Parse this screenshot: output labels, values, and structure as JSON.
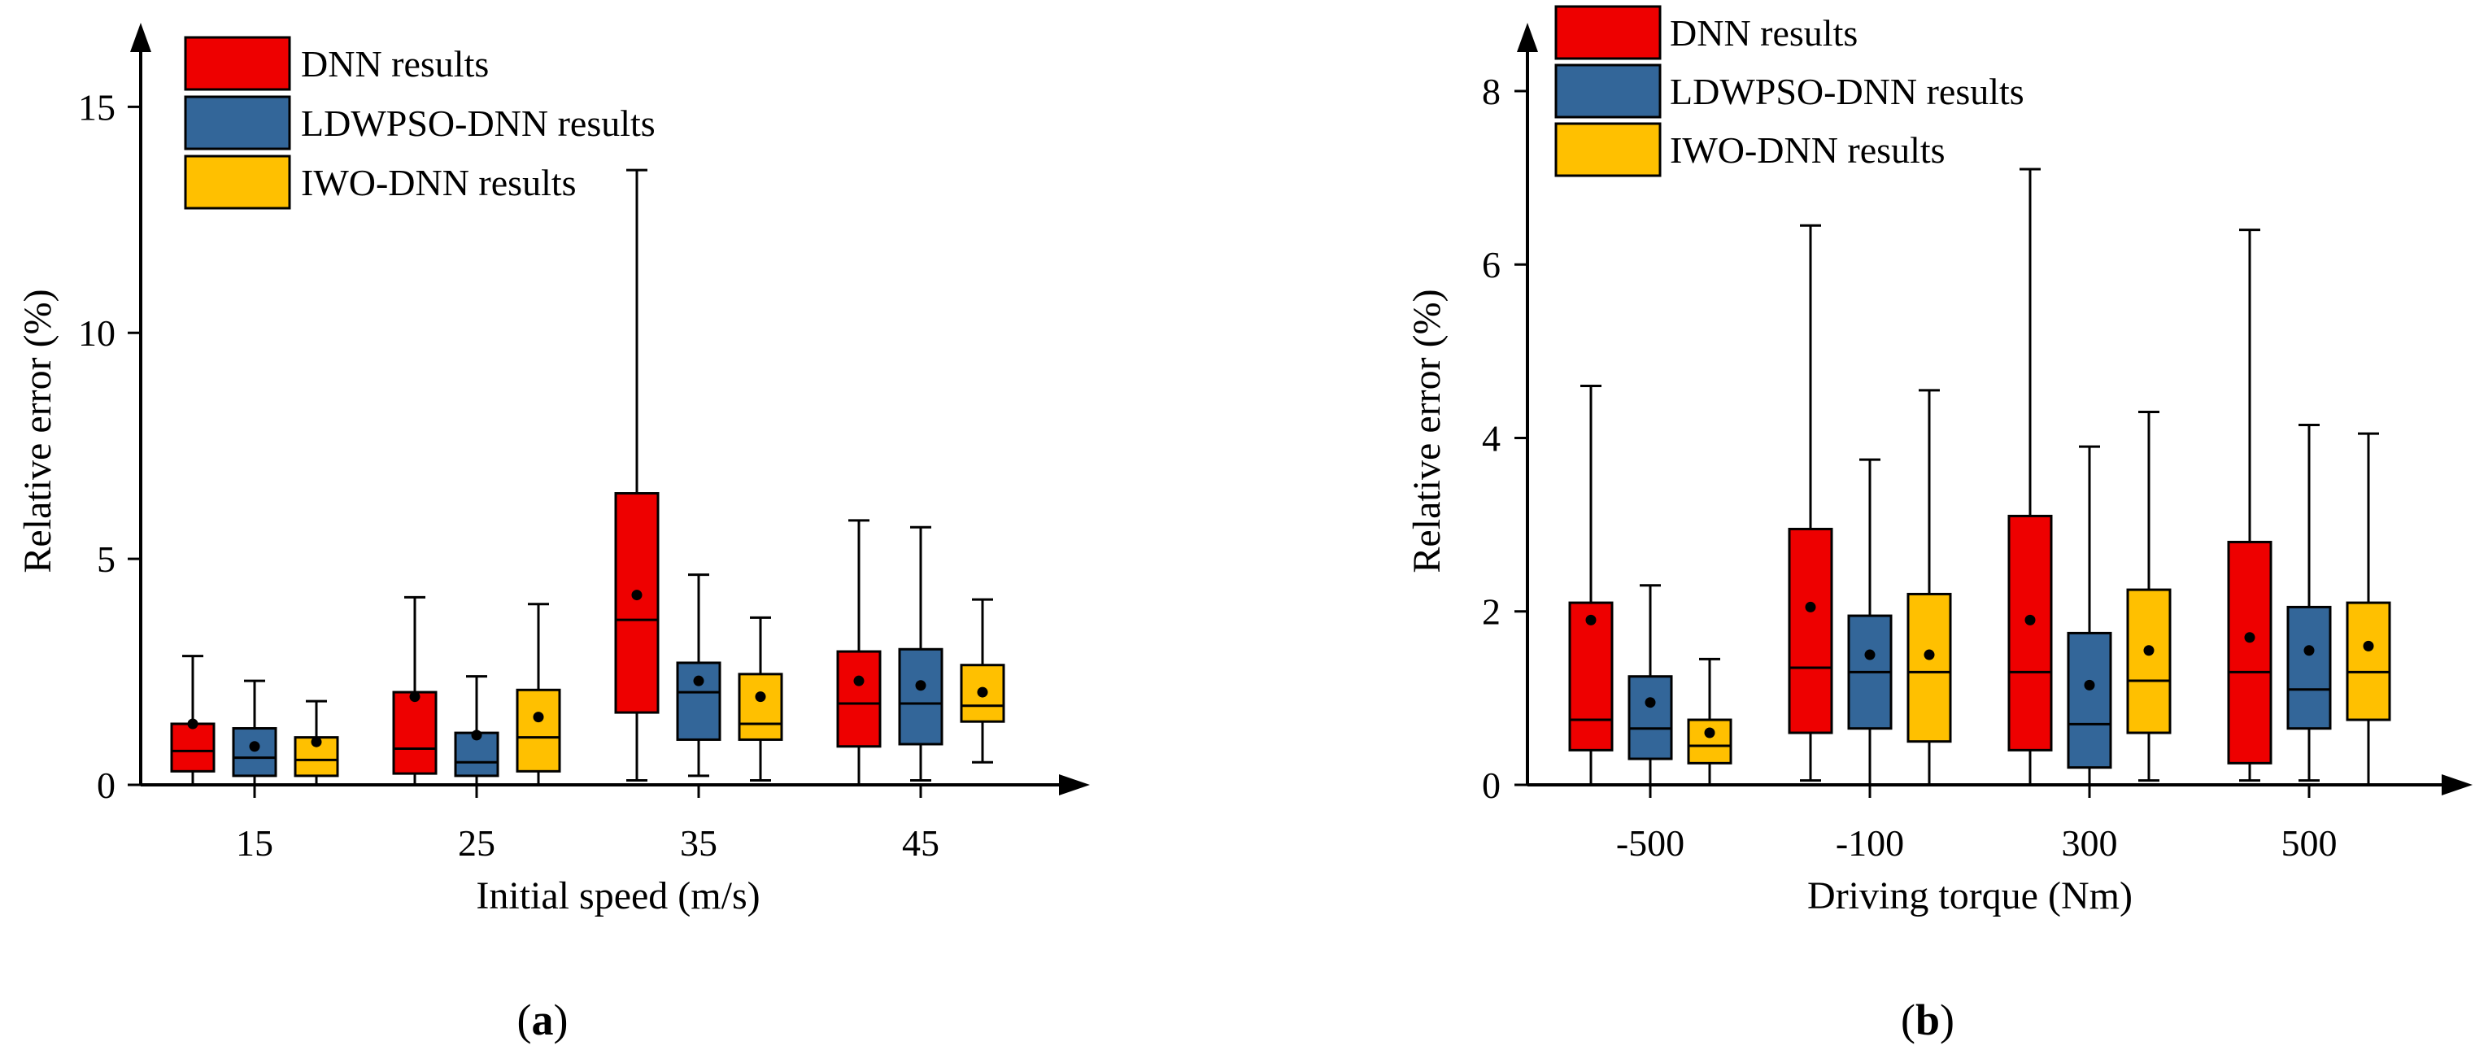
{
  "colors": {
    "dnn": "#ee0000",
    "ldwpso": "#336699",
    "iwo": "#ffc000",
    "axis": "#000000"
  },
  "chart_data": [
    {
      "type": "box",
      "panel_label": "a",
      "xlabel": "Initial speed (m/s)",
      "ylabel": "Relative error (%)",
      "categories": [
        "15",
        "25",
        "35",
        "45"
      ],
      "ylim": [
        0,
        16.5
      ],
      "yticks": [
        0,
        5,
        10,
        15
      ],
      "grid": false,
      "legend": "top-left",
      "series": [
        {
          "name": "DNN results",
          "color_key": "dnn",
          "boxes": [
            {
              "min": 0.0,
              "q1": 0.3,
              "median": 0.75,
              "q3": 1.35,
              "max": 2.85,
              "mean": 1.35
            },
            {
              "min": 0.0,
              "q1": 0.25,
              "median": 0.8,
              "q3": 2.05,
              "max": 4.15,
              "mean": 1.95
            },
            {
              "min": 0.1,
              "q1": 1.6,
              "median": 3.65,
              "q3": 6.45,
              "max": 13.6,
              "mean": 4.2
            },
            {
              "min": 0.0,
              "q1": 0.85,
              "median": 1.8,
              "q3": 2.95,
              "max": 5.85,
              "mean": 2.3
            }
          ]
        },
        {
          "name": "LDWPSO-DNN results",
          "color_key": "ldwpso",
          "boxes": [
            {
              "min": 0.0,
              "q1": 0.2,
              "median": 0.6,
              "q3": 1.25,
              "max": 2.3,
              "mean": 0.85
            },
            {
              "min": 0.0,
              "q1": 0.2,
              "median": 0.5,
              "q3": 1.15,
              "max": 2.4,
              "mean": 1.1
            },
            {
              "min": 0.2,
              "q1": 1.0,
              "median": 2.05,
              "q3": 2.7,
              "max": 4.65,
              "mean": 2.3
            },
            {
              "min": 0.1,
              "q1": 0.9,
              "median": 1.8,
              "q3": 3.0,
              "max": 5.7,
              "mean": 2.2
            }
          ]
        },
        {
          "name": "IWO-DNN results",
          "color_key": "iwo",
          "boxes": [
            {
              "min": 0.0,
              "q1": 0.2,
              "median": 0.55,
              "q3": 1.05,
              "max": 1.85,
              "mean": 0.95
            },
            {
              "min": 0.0,
              "q1": 0.3,
              "median": 1.05,
              "q3": 2.1,
              "max": 4.0,
              "mean": 1.5
            },
            {
              "min": 0.1,
              "q1": 1.0,
              "median": 1.35,
              "q3": 2.45,
              "max": 3.7,
              "mean": 1.95
            },
            {
              "min": 0.5,
              "q1": 1.4,
              "median": 1.75,
              "q3": 2.65,
              "max": 4.1,
              "mean": 2.05
            }
          ]
        }
      ]
    },
    {
      "type": "box",
      "panel_label": "b",
      "xlabel": "Driving torque (Nm)",
      "ylabel": "Relative error (%)",
      "categories": [
        "-500",
        "-100",
        "300",
        "500"
      ],
      "ylim": [
        0,
        8.6
      ],
      "yticks": [
        0,
        2,
        4,
        6,
        8
      ],
      "grid": false,
      "legend": "top-left",
      "series": [
        {
          "name": "DNN results",
          "color_key": "dnn",
          "boxes": [
            {
              "min": 0.0,
              "q1": 0.4,
              "median": 0.75,
              "q3": 2.1,
              "max": 4.6,
              "mean": 1.9
            },
            {
              "min": 0.05,
              "q1": 0.6,
              "median": 1.35,
              "q3": 2.95,
              "max": 6.45,
              "mean": 2.05
            },
            {
              "min": 0.0,
              "q1": 0.4,
              "median": 1.3,
              "q3": 3.1,
              "max": 7.1,
              "mean": 1.9
            },
            {
              "min": 0.05,
              "q1": 0.25,
              "median": 1.3,
              "q3": 2.8,
              "max": 6.4,
              "mean": 1.7
            }
          ]
        },
        {
          "name": "LDWPSO-DNN results",
          "color_key": "ldwpso",
          "boxes": [
            {
              "min": 0.0,
              "q1": 0.3,
              "median": 0.65,
              "q3": 1.25,
              "max": 2.3,
              "mean": 0.95
            },
            {
              "min": 0.0,
              "q1": 0.65,
              "median": 1.3,
              "q3": 1.95,
              "max": 3.75,
              "mean": 1.5
            },
            {
              "min": 0.0,
              "q1": 0.2,
              "median": 0.7,
              "q3": 1.75,
              "max": 3.9,
              "mean": 1.15
            },
            {
              "min": 0.05,
              "q1": 0.65,
              "median": 1.1,
              "q3": 2.05,
              "max": 4.15,
              "mean": 1.55
            }
          ]
        },
        {
          "name": "IWO-DNN results",
          "color_key": "iwo",
          "boxes": [
            {
              "min": 0.0,
              "q1": 0.25,
              "median": 0.45,
              "q3": 0.75,
              "max": 1.45,
              "mean": 0.6
            },
            {
              "min": 0.0,
              "q1": 0.5,
              "median": 1.3,
              "q3": 2.2,
              "max": 4.55,
              "mean": 1.5
            },
            {
              "min": 0.05,
              "q1": 0.6,
              "median": 1.2,
              "q3": 2.25,
              "max": 4.3,
              "mean": 1.55
            },
            {
              "min": 0.0,
              "q1": 0.75,
              "median": 1.3,
              "q3": 2.1,
              "max": 4.05,
              "mean": 1.6
            }
          ]
        }
      ]
    }
  ]
}
